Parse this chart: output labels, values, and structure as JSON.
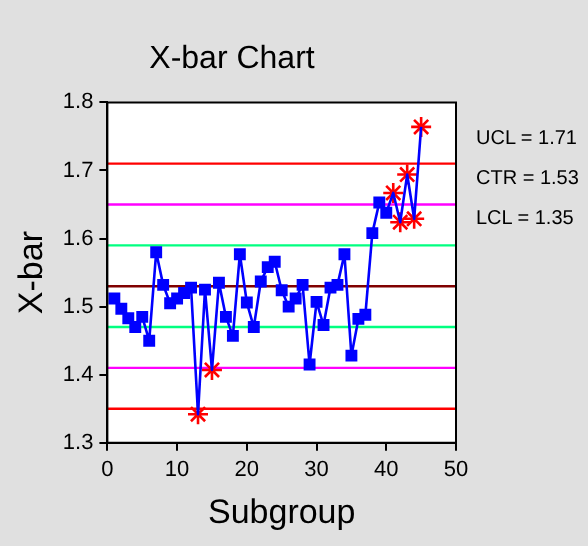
{
  "chart_data": {
    "type": "line",
    "title": "X-bar Chart",
    "xlabel": "Subgroup",
    "ylabel": "X-bar",
    "xlim": [
      0,
      50
    ],
    "xticks": [
      0,
      10,
      20,
      30,
      40,
      50
    ],
    "ylim": [
      1.3,
      1.8
    ],
    "yticks": [
      1.3,
      1.4,
      1.5,
      1.6,
      1.7,
      1.8
    ],
    "grid": false,
    "legend": false,
    "series": [
      {
        "marker": "none",
        "color": "#0000ff",
        "x": [
          1,
          2,
          3,
          4,
          5,
          6,
          7,
          8,
          9,
          10,
          11,
          12,
          13,
          14,
          15,
          16,
          17,
          18,
          19,
          20,
          21,
          22,
          23,
          24,
          25,
          26,
          27,
          28,
          29,
          30,
          31,
          32,
          33,
          34,
          35,
          36,
          37,
          38,
          39,
          40,
          41,
          42,
          43,
          44,
          45
        ],
        "values": [
          1.512,
          1.497,
          1.483,
          1.47,
          1.485,
          1.45,
          1.58,
          1.532,
          1.505,
          1.512,
          1.52,
          1.528,
          1.342,
          1.525,
          1.407,
          1.535,
          1.485,
          1.457,
          1.577,
          1.506,
          1.47,
          1.537,
          1.558,
          1.566,
          1.524,
          1.5,
          1.512,
          1.532,
          1.415,
          1.507,
          1.473,
          1.528,
          1.532,
          1.577,
          1.428,
          1.482,
          1.488,
          1.608,
          1.653,
          1.638,
          1.667,
          1.624,
          1.694,
          1.629,
          1.764
        ]
      },
      {
        "type": "scatter",
        "marker": "square",
        "color": "#0000ff",
        "x": [
          1,
          2,
          3,
          4,
          5,
          6,
          7,
          8,
          9,
          10,
          11,
          12,
          14,
          16,
          17,
          18,
          19,
          20,
          21,
          22,
          23,
          24,
          25,
          26,
          27,
          28,
          29,
          30,
          31,
          32,
          33,
          34,
          35,
          36,
          37,
          38,
          39,
          40
        ],
        "values": [
          1.512,
          1.497,
          1.483,
          1.47,
          1.485,
          1.45,
          1.58,
          1.532,
          1.505,
          1.512,
          1.52,
          1.528,
          1.525,
          1.535,
          1.485,
          1.457,
          1.577,
          1.506,
          1.47,
          1.537,
          1.558,
          1.566,
          1.524,
          1.5,
          1.512,
          1.532,
          1.415,
          1.507,
          1.473,
          1.528,
          1.532,
          1.577,
          1.428,
          1.482,
          1.488,
          1.608,
          1.653,
          1.638
        ]
      },
      {
        "type": "scatter",
        "marker": "cross",
        "color": "#ff0000",
        "x": [
          13,
          15,
          41,
          42,
          43,
          44,
          45
        ],
        "values": [
          1.342,
          1.407,
          1.667,
          1.624,
          1.694,
          1.629,
          1.764
        ]
      }
    ],
    "ref_lines": [
      {
        "axis": "y",
        "value": 1.71,
        "color": "#ff0000"
      },
      {
        "axis": "y",
        "value": 1.65,
        "color": "#ff00ff"
      },
      {
        "axis": "y",
        "value": 1.59,
        "color": "#00ff80"
      },
      {
        "axis": "y",
        "value": 1.53,
        "color": "#800000"
      },
      {
        "axis": "y",
        "value": 1.47,
        "color": "#00ff80"
      },
      {
        "axis": "y",
        "value": 1.41,
        "color": "#ff00ff"
      },
      {
        "axis": "y",
        "value": 1.35,
        "color": "#ff0000"
      }
    ],
    "annotations": [
      "UCL = 1.71",
      "CTR = 1.53",
      "LCL = 1.35"
    ]
  }
}
